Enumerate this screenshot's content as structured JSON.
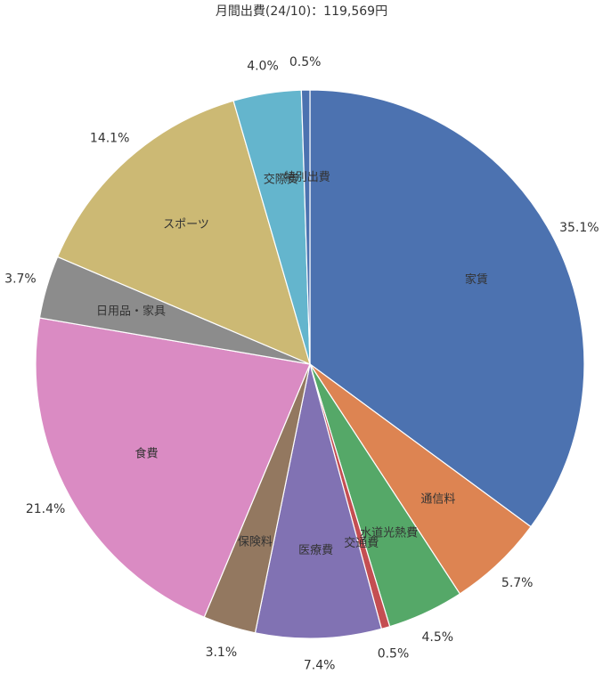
{
  "chart_data": {
    "type": "pie",
    "title": "月間出費(24/10)：119,569円",
    "start_angle_deg": 0,
    "direction": "clockwise",
    "slices": [
      {
        "name": "家賃",
        "value": 35.1,
        "label": "35.1%",
        "color": "#4c72b0"
      },
      {
        "name": "通信料",
        "value": 5.7,
        "label": "5.7%",
        "color": "#dd8452"
      },
      {
        "name": "水道光熱費",
        "value": 4.5,
        "label": "4.5%",
        "color": "#55a868"
      },
      {
        "name": "交通費",
        "value": 0.5,
        "label": "0.5%",
        "color": "#c44e52"
      },
      {
        "name": "医療費",
        "value": 7.4,
        "label": "7.4%",
        "color": "#8172b3"
      },
      {
        "name": "保険料",
        "value": 3.1,
        "label": "3.1%",
        "color": "#937860"
      },
      {
        "name": "食費",
        "value": 21.4,
        "label": "21.4%",
        "color": "#da8bc3"
      },
      {
        "name": "日用品・家具",
        "value": 3.7,
        "label": "3.7%",
        "color": "#8c8c8c"
      },
      {
        "name": "スポーツ",
        "value": 14.1,
        "label": "14.1%",
        "color": "#ccb974"
      },
      {
        "name": "交際費",
        "value": 4.0,
        "label": "4.0%",
        "color": "#64b5cd"
      },
      {
        "name": "特別出費",
        "value": 0.5,
        "label": "0.5%",
        "color": "#4c72b0"
      }
    ]
  }
}
